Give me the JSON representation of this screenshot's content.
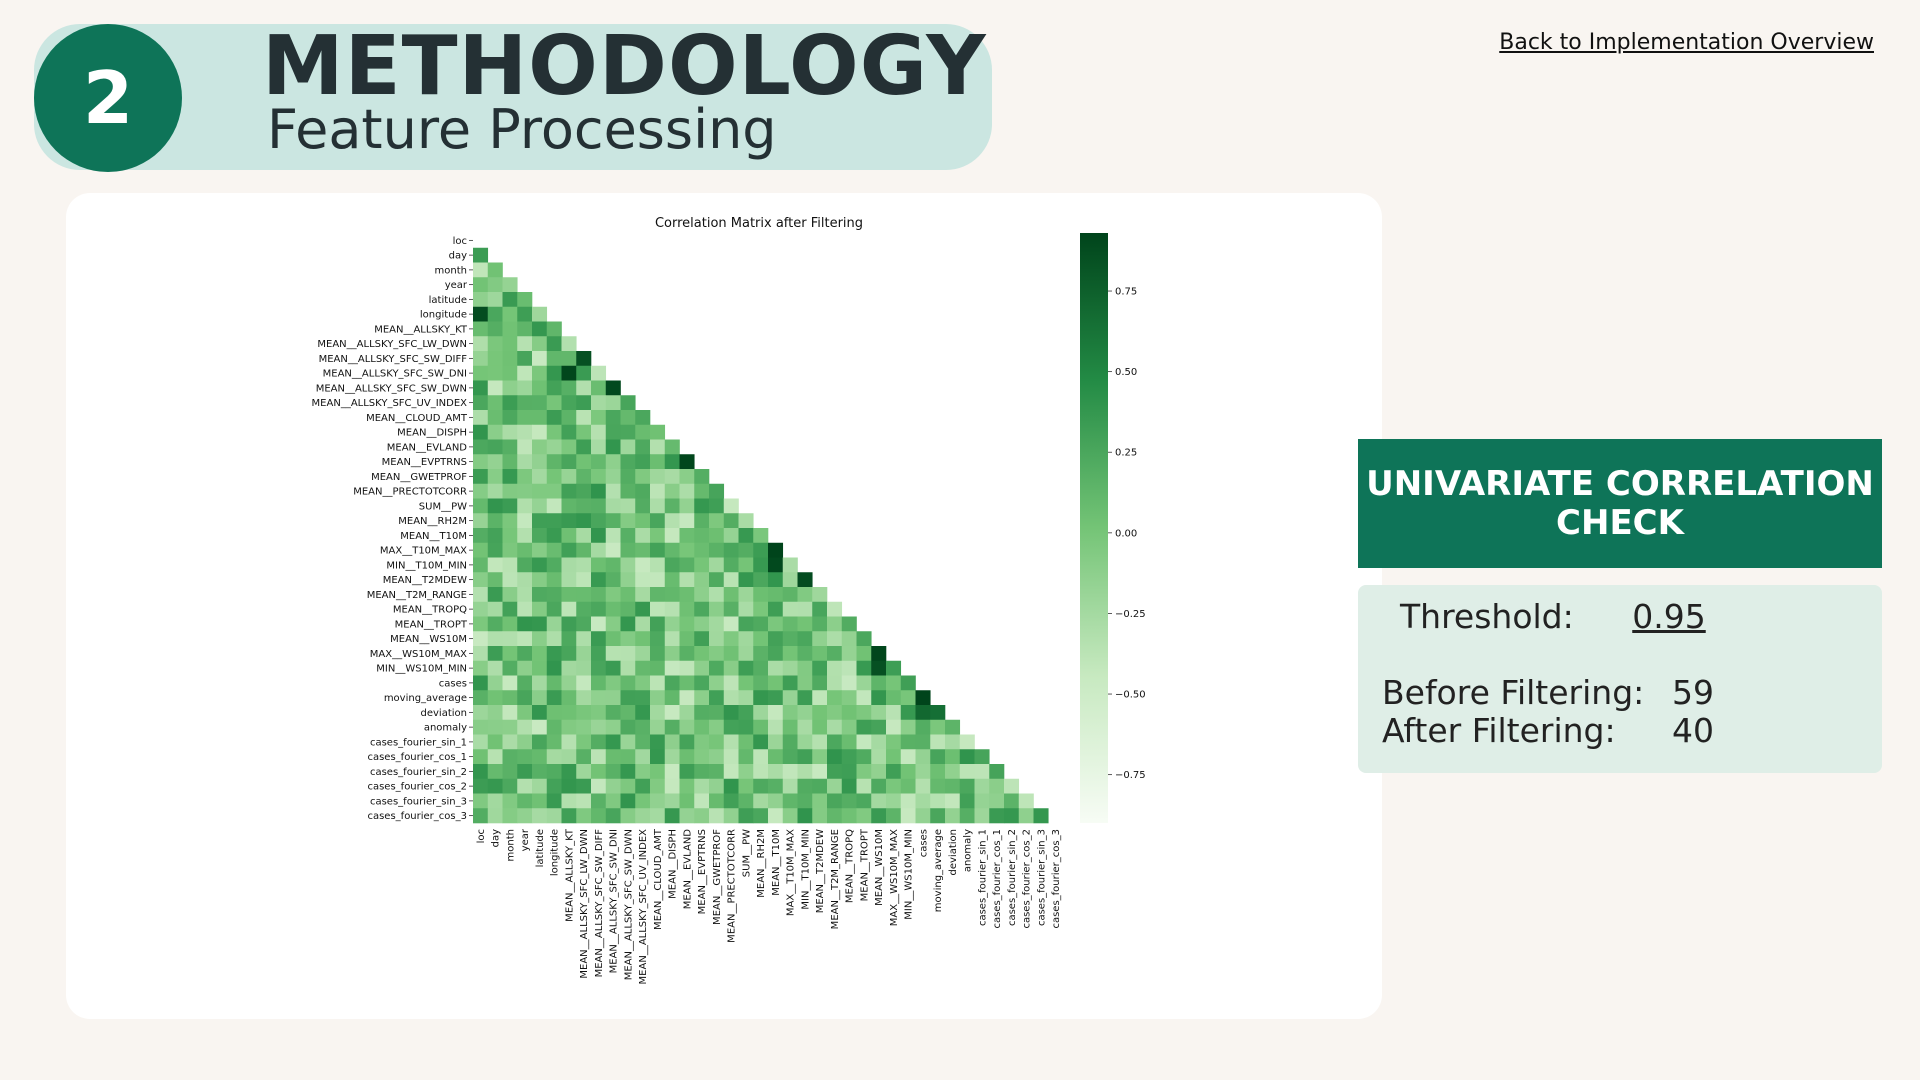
{
  "header": {
    "step_number": "2",
    "title": "METHODOLOGY",
    "subtitle": "Feature Processing"
  },
  "nav": {
    "back_link": "Back to Implementation Overview"
  },
  "colors": {
    "accent": "#0e7458",
    "header_bg": "#cbe6e1",
    "panel_bg": "#dfeee7",
    "page_bg": "#f9f5f1"
  },
  "panel": {
    "heading": "UNIVARIATE CORRELATION CHECK",
    "threshold_label": "Threshold:",
    "threshold_value": "0.95",
    "before_label": "Before Filtering:",
    "before_value": "59",
    "after_label": "After Filtering:",
    "after_value": "40"
  },
  "chart_data": {
    "type": "heatmap",
    "title": "Correlation Matrix after Filtering",
    "mask": "upper-triangle",
    "colormap": "Greens",
    "colorbar": {
      "vmin": -0.9,
      "vmax": 0.93,
      "ticks": [
        0.75,
        0.5,
        0.25,
        0.0,
        -0.25,
        -0.5,
        -0.75
      ],
      "tick_labels": [
        "0.75",
        "0.50",
        "0.25",
        "0.00",
        "−0.25",
        "−0.50",
        "−0.75"
      ]
    },
    "variables": [
      "loc",
      "day",
      "month",
      "year",
      "latitude",
      "longitude",
      "MEAN__ALLSKY_KT",
      "MEAN__ALLSKY_SFC_LW_DWN",
      "MEAN__ALLSKY_SFC_SW_DIFF",
      "MEAN__ALLSKY_SFC_SW_DNI",
      "MEAN__ALLSKY_SFC_SW_DWN",
      "MEAN__ALLSKY_SFC_UV_INDEX",
      "MEAN__CLOUD_AMT",
      "MEAN__DISPH",
      "MEAN__EVLAND",
      "MEAN__EVPTRNS",
      "MEAN__GWETPROF",
      "MEAN__PRECTOTCORR",
      "SUM__PW",
      "MEAN__RH2M",
      "MEAN__T10M",
      "MAX__T10M_MAX",
      "MIN__T10M_MIN",
      "MEAN__T2MDEW",
      "MEAN__T2M_RANGE",
      "MEAN__TROPQ",
      "MEAN__TROPT",
      "MEAN__WS10M",
      "MAX__WS10M_MAX",
      "MIN__WS10M_MIN",
      "cases",
      "moving_average",
      "deviation",
      "anomaly",
      "cases_fourier_sin_1",
      "cases_fourier_cos_1",
      "cases_fourier_sin_2",
      "cases_fourier_cos_2",
      "cases_fourier_sin_3",
      "cases_fourier_cos_3"
    ],
    "highlights": [
      {
        "row": "longitude",
        "col": "loc",
        "value": 0.88
      },
      {
        "row": "MEAN__ALLSKY_SFC_SW_DIFF",
        "col": "MEAN__ALLSKY_SFC_LW_DWN",
        "value": 0.85
      },
      {
        "row": "MEAN__ALLSKY_SFC_SW_DNI",
        "col": "MEAN__ALLSKY_KT",
        "value": 0.92
      },
      {
        "row": "MEAN__ALLSKY_SFC_SW_DWN",
        "col": "MEAN__ALLSKY_SFC_SW_DNI",
        "value": 0.9
      },
      {
        "row": "MEAN__EVPTRNS",
        "col": "MEAN__EVLAND",
        "value": 0.92
      },
      {
        "row": "MAX__T10M_MAX",
        "col": "MEAN__T10M",
        "value": 0.93
      },
      {
        "row": "MIN__T10M_MIN",
        "col": "MEAN__T10M",
        "value": 0.9
      },
      {
        "row": "MEAN__T2MDEW",
        "col": "MIN__T10M_MIN",
        "value": 0.88
      },
      {
        "row": "MAX__WS10M_MAX",
        "col": "MEAN__WS10M",
        "value": 0.92
      },
      {
        "row": "MIN__WS10M_MIN",
        "col": "MEAN__WS10M",
        "value": 0.85
      },
      {
        "row": "moving_average",
        "col": "cases",
        "value": 0.93
      },
      {
        "row": "deviation",
        "col": "cases",
        "value": 0.7
      },
      {
        "row": "deviation",
        "col": "moving_average",
        "value": 0.65
      }
    ]
  }
}
